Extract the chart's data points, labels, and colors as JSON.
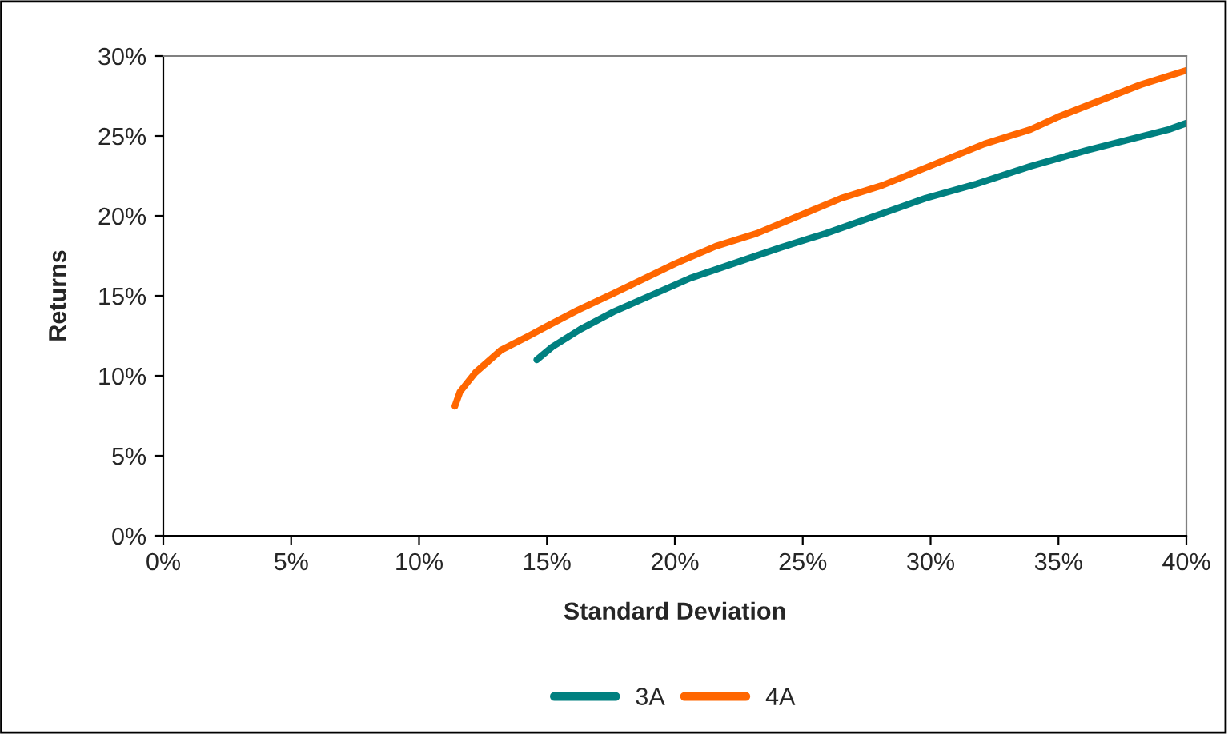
{
  "chart_data": {
    "type": "line",
    "xlabel": "Standard Deviation",
    "ylabel": "Returns",
    "series": [
      {
        "name": "3A",
        "color": "#008080",
        "x": [
          14.6,
          15.2,
          16.3,
          17.6,
          19.6,
          20.6,
          24.1,
          25.9,
          29.8,
          31.8,
          33.9,
          36.1,
          39.3,
          40.0
        ],
        "values": [
          11.0,
          11.8,
          12.9,
          14.0,
          15.4,
          16.1,
          18.0,
          18.9,
          21.1,
          22.0,
          23.1,
          24.1,
          25.4,
          25.8
        ]
      },
      {
        "name": "4A",
        "color": "#ff6600",
        "x": [
          11.4,
          11.6,
          12.2,
          13.2,
          14.3,
          15.0,
          16.2,
          17.4,
          20.0,
          21.6,
          23.2,
          26.5,
          28.1,
          32.1,
          33.9,
          35.0,
          38.2,
          40.0
        ],
        "values": [
          8.1,
          9.0,
          10.2,
          11.6,
          12.5,
          13.1,
          14.1,
          15.0,
          17.0,
          18.1,
          18.9,
          21.1,
          21.9,
          24.5,
          25.4,
          26.2,
          28.2,
          29.1
        ]
      }
    ],
    "xlim": [
      0,
      40
    ],
    "ylim": [
      0,
      30
    ],
    "xticks": [
      {
        "value": 0,
        "label": "0%"
      },
      {
        "value": 5,
        "label": "5%"
      },
      {
        "value": 10,
        "label": "10%"
      },
      {
        "value": 15,
        "label": "15%"
      },
      {
        "value": 20,
        "label": "20%"
      },
      {
        "value": 25,
        "label": "25%"
      },
      {
        "value": 30,
        "label": "30%"
      },
      {
        "value": 35,
        "label": "35%"
      },
      {
        "value": 40,
        "label": "40%"
      }
    ],
    "yticks": [
      {
        "value": 0,
        "label": "0%"
      },
      {
        "value": 5,
        "label": "5%"
      },
      {
        "value": 10,
        "label": "10%"
      },
      {
        "value": 15,
        "label": "15%"
      },
      {
        "value": 20,
        "label": "20%"
      },
      {
        "value": 25,
        "label": "25%"
      },
      {
        "value": 30,
        "label": "30%"
      }
    ],
    "grid": false,
    "legend": "bottom",
    "marker": "none",
    "line_style": "solid"
  }
}
